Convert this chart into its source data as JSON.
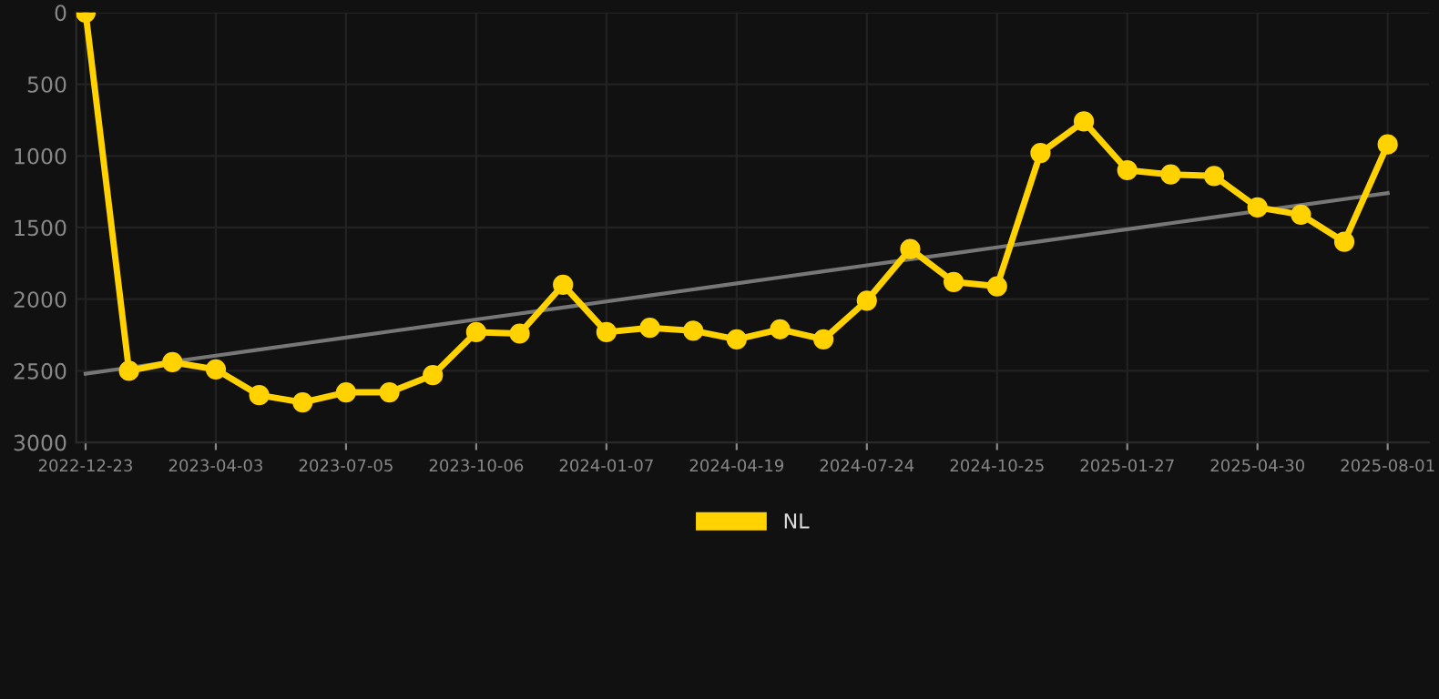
{
  "chart_data": {
    "type": "line",
    "categories": [
      "2022-12-23",
      null,
      null,
      "2023-04-03",
      null,
      null,
      "2023-07-05",
      null,
      null,
      "2023-10-06",
      null,
      null,
      "2024-01-07",
      null,
      null,
      "2024-04-19",
      null,
      null,
      "2024-07-24",
      null,
      null,
      "2024-10-25",
      null,
      null,
      "2025-01-27",
      null,
      null,
      "2025-04-30",
      null,
      null,
      "2025-08-01"
    ],
    "series": [
      {
        "name": "NL",
        "color": "#ffd200",
        "marker": "circle",
        "values": [
          0,
          2500,
          2440,
          2490,
          2670,
          2720,
          2650,
          2650,
          2530,
          2230,
          2240,
          1900,
          2230,
          2200,
          2220,
          2280,
          2210,
          2280,
          2010,
          1650,
          1880,
          1910,
          980,
          760,
          1100,
          1130,
          1140,
          1360,
          1410,
          1600,
          920
        ]
      },
      {
        "type": "line",
        "color": "#777777",
        "marker": "none",
        "values": [
          2520,
          2478,
          2436,
          2394,
          2352,
          2310,
          2268,
          2226,
          2184,
          2142,
          2100,
          2058,
          2016,
          1974,
          1932,
          1890,
          1848,
          1806,
          1764,
          1722,
          1680,
          1638,
          1596,
          1554,
          1512,
          1470,
          1428,
          1386,
          1344,
          1302,
          1260
        ]
      }
    ],
    "ylim": [
      3000,
      0
    ],
    "yticks": [
      0,
      500,
      1000,
      1500,
      2000,
      2500,
      3000
    ],
    "grid": true,
    "legend": "bottom",
    "line_style": "solid"
  }
}
